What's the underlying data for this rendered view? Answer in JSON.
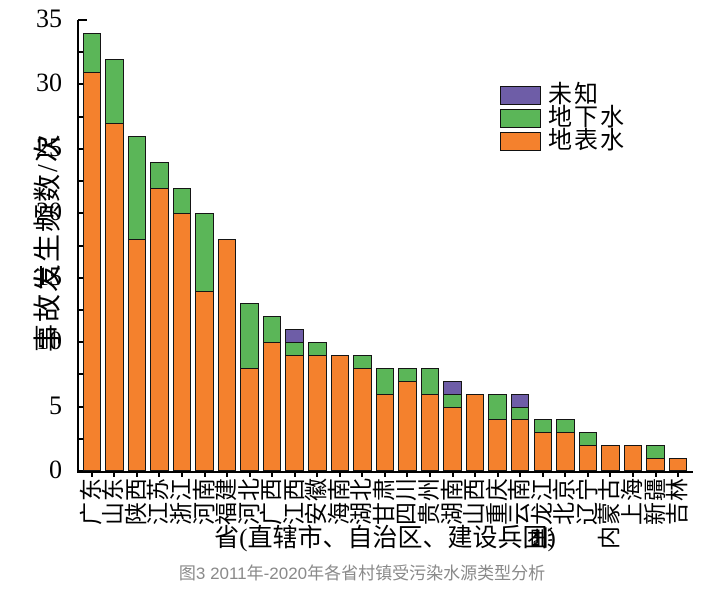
{
  "figure": {
    "caption": "图3 2011年-2020年各省村镇受污染水源类型分析"
  },
  "chart_data": {
    "type": "bar",
    "stacked": true,
    "xlabel": "省(直辖市、自治区、建设兵团)",
    "ylabel": "事故发生频数/次",
    "ylim": [
      0,
      35
    ],
    "ytick_major_step": 5,
    "ytick_minor_step": 2.5,
    "grid": false,
    "legend_position": "upper-right-inside",
    "categories": [
      "广东",
      "山东",
      "陕西",
      "江苏",
      "浙江",
      "河南",
      "福建",
      "河北",
      "广西",
      "江西",
      "安徽",
      "海南",
      "湖北",
      "甘肃",
      "四川",
      "贵州",
      "湖南",
      "山西",
      "重庆",
      "云南",
      "黑龙江",
      "北京",
      "辽宁",
      "内蒙古",
      "上海",
      "新疆",
      "吉林"
    ],
    "series": [
      {
        "name": "地表水",
        "color": "#F4812D",
        "values": [
          31,
          27,
          18,
          22,
          20,
          14,
          18,
          8,
          10,
          9,
          9,
          9,
          8,
          6,
          7,
          6,
          5,
          6,
          4,
          4,
          3,
          3,
          2,
          2,
          2,
          1,
          1
        ]
      },
      {
        "name": "地下水",
        "color": "#5BB658",
        "values": [
          3,
          5,
          8,
          2,
          2,
          6,
          0,
          5,
          2,
          1,
          1,
          0,
          1,
          2,
          1,
          2,
          1,
          0,
          2,
          1,
          1,
          1,
          1,
          0,
          0,
          1,
          0
        ]
      },
      {
        "name": "未知",
        "color": "#6E5DA7",
        "values": [
          0,
          0,
          0,
          0,
          0,
          0,
          0,
          0,
          0,
          1,
          0,
          0,
          0,
          0,
          0,
          0,
          1,
          0,
          0,
          1,
          0,
          0,
          0,
          0,
          0,
          0,
          0
        ]
      }
    ],
    "totals": [
      34,
      32,
      26,
      24,
      22,
      20,
      18,
      13,
      12,
      11,
      10,
      9,
      9,
      8,
      8,
      8,
      7,
      6,
      6,
      6,
      4,
      4,
      3,
      2,
      2,
      2,
      1
    ],
    "legend": [
      {
        "label": "未知",
        "color": "#6E5DA7"
      },
      {
        "label": "地下水",
        "color": "#5BB658"
      },
      {
        "label": "地表水",
        "color": "#F4812D"
      }
    ],
    "colors": {
      "axis": "#000000",
      "bar_outline": "#151515",
      "caption_gray": "#8a8a8a"
    }
  }
}
